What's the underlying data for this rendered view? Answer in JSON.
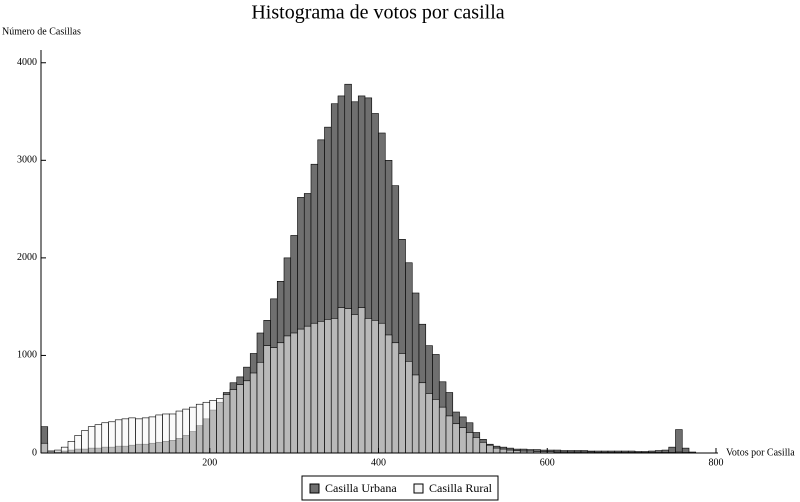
{
  "chart_data": {
    "type": "histogram",
    "title": "Histograma de votos por casilla",
    "y_label": "Número de Casillas",
    "x_label": "Votos por Casilla",
    "bins": [
      0,
      8,
      16,
      24,
      32,
      40,
      48,
      56,
      64,
      72,
      80,
      88,
      96,
      104,
      112,
      120,
      128,
      136,
      144,
      152,
      160,
      168,
      176,
      184,
      192,
      200,
      208,
      216,
      224,
      232,
      240,
      248,
      256,
      264,
      272,
      280,
      288,
      296,
      304,
      312,
      320,
      328,
      336,
      344,
      352,
      360,
      368,
      376,
      384,
      392,
      400,
      408,
      416,
      424,
      432,
      440,
      448,
      456,
      464,
      472,
      480,
      488,
      496,
      504,
      512,
      520,
      528,
      536,
      544,
      552,
      560,
      568,
      576,
      584,
      592,
      600,
      608,
      616,
      624,
      632,
      640,
      648,
      656,
      664,
      672,
      680,
      688,
      696,
      704,
      712,
      720,
      728,
      736,
      744,
      752,
      760,
      768,
      776
    ],
    "series": [
      {
        "name": "Casilla Urbana",
        "color": "#6f6f6f",
        "values": [
          270,
          20,
          10,
          20,
          30,
          40,
          40,
          50,
          50,
          60,
          60,
          70,
          70,
          80,
          90,
          90,
          100,
          110,
          120,
          130,
          150,
          180,
          220,
          280,
          350,
          440,
          520,
          620,
          720,
          780,
          880,
          1020,
          1230,
          1360,
          1580,
          1760,
          2000,
          2230,
          2620,
          2660,
          2960,
          3210,
          3340,
          3580,
          3660,
          3780,
          3600,
          3660,
          3640,
          3480,
          3280,
          3000,
          2740,
          2190,
          1950,
          1640,
          1320,
          1100,
          1010,
          730,
          620,
          420,
          370,
          310,
          210,
          140,
          90,
          70,
          60,
          50,
          40,
          40,
          35,
          35,
          30,
          30,
          30,
          25,
          25,
          25,
          25,
          20,
          20,
          20,
          20,
          20,
          20,
          20,
          15,
          15,
          20,
          25,
          30,
          60,
          240,
          50,
          10
        ]
      },
      {
        "name": "Casilla Rural",
        "color": "#f5f5f5",
        "values": [
          100,
          20,
          30,
          60,
          120,
          180,
          230,
          270,
          290,
          310,
          320,
          340,
          350,
          360,
          350,
          360,
          370,
          390,
          400,
          400,
          430,
          450,
          470,
          500,
          520,
          540,
          560,
          600,
          650,
          700,
          740,
          820,
          930,
          1100,
          1080,
          1130,
          1200,
          1230,
          1270,
          1300,
          1330,
          1350,
          1370,
          1380,
          1490,
          1480,
          1420,
          1490,
          1380,
          1360,
          1330,
          1210,
          1130,
          1020,
          940,
          800,
          720,
          610,
          550,
          470,
          380,
          300,
          260,
          210,
          160,
          110,
          80,
          50,
          40,
          30,
          25,
          20,
          20,
          15,
          15,
          15,
          10,
          10,
          10,
          10,
          10,
          10,
          5,
          5,
          5,
          5,
          5,
          5,
          5,
          5,
          5,
          5,
          5,
          5,
          10,
          5,
          0
        ]
      }
    ],
    "xlim": [
      0,
      800
    ],
    "ylim": [
      0,
      4100
    ],
    "xticks": [
      200,
      400,
      600,
      800
    ],
    "yticks": [
      0,
      1000,
      2000,
      3000,
      4000
    ]
  }
}
